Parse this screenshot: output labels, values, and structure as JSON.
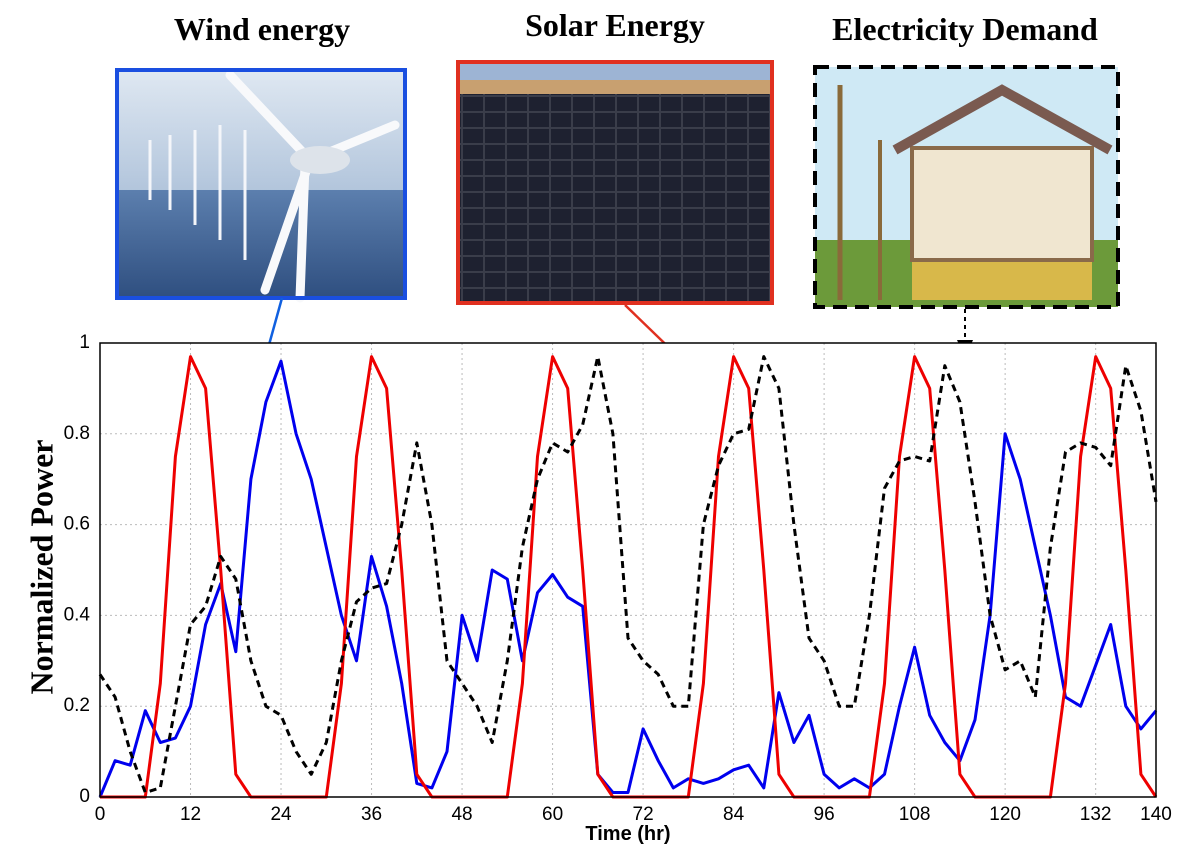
{
  "chart_data": {
    "type": "line",
    "x": [
      0,
      2,
      4,
      6,
      8,
      10,
      12,
      14,
      16,
      18,
      20,
      22,
      24,
      26,
      28,
      30,
      32,
      34,
      36,
      38,
      40,
      42,
      44,
      46,
      48,
      50,
      52,
      54,
      56,
      58,
      60,
      62,
      64,
      66,
      68,
      70,
      72,
      74,
      76,
      78,
      80,
      82,
      84,
      86,
      88,
      90,
      92,
      94,
      96,
      98,
      100,
      102,
      104,
      106,
      108,
      110,
      112,
      114,
      116,
      118,
      120,
      122,
      124,
      126,
      128,
      130,
      132,
      134,
      136,
      138,
      140
    ],
    "series": [
      {
        "name": "Wind energy",
        "color": "#0000ee",
        "dashed": false,
        "values": [
          0,
          0.08,
          0.07,
          0.19,
          0.12,
          0.13,
          0.2,
          0.38,
          0.47,
          0.32,
          0.7,
          0.87,
          0.96,
          0.8,
          0.7,
          0.55,
          0.4,
          0.3,
          0.53,
          0.42,
          0.25,
          0.03,
          0.02,
          0.1,
          0.4,
          0.3,
          0.5,
          0.48,
          0.3,
          0.45,
          0.49,
          0.44,
          0.42,
          0.05,
          0.01,
          0.01,
          0.15,
          0.08,
          0.02,
          0.04,
          0.03,
          0.04,
          0.06,
          0.07,
          0.02,
          0.23,
          0.12,
          0.18,
          0.05,
          0.02,
          0.04,
          0.02,
          0.05,
          0.2,
          0.33,
          0.18,
          0.12,
          0.08,
          0.17,
          0.4,
          0.8,
          0.7,
          0.55,
          0.4,
          0.22,
          0.2,
          0.29,
          0.38,
          0.2,
          0.15,
          0.19
        ]
      },
      {
        "name": "Solar Energy",
        "color": "#ee0000",
        "dashed": false,
        "values": [
          0,
          0,
          0,
          0,
          0.25,
          0.75,
          0.97,
          0.9,
          0.5,
          0.05,
          0,
          0,
          0,
          0,
          0,
          0,
          0.25,
          0.75,
          0.97,
          0.9,
          0.5,
          0.05,
          0,
          0,
          0,
          0,
          0,
          0,
          0.25,
          0.75,
          0.97,
          0.9,
          0.5,
          0.05,
          0,
          0,
          0,
          0,
          0,
          0,
          0.25,
          0.75,
          0.97,
          0.9,
          0.5,
          0.05,
          0,
          0,
          0,
          0,
          0,
          0,
          0.25,
          0.75,
          0.97,
          0.9,
          0.5,
          0.05,
          0,
          0,
          0,
          0,
          0,
          0,
          0.25,
          0.75,
          0.97,
          0.9,
          0.5,
          0.05,
          0
        ]
      },
      {
        "name": "Electricity Demand",
        "color": "#000000",
        "dashed": true,
        "values": [
          0.27,
          0.22,
          0.1,
          0.01,
          0.02,
          0.2,
          0.38,
          0.42,
          0.53,
          0.48,
          0.3,
          0.2,
          0.18,
          0.1,
          0.05,
          0.12,
          0.3,
          0.43,
          0.46,
          0.47,
          0.6,
          0.78,
          0.6,
          0.3,
          0.25,
          0.2,
          0.12,
          0.3,
          0.55,
          0.7,
          0.78,
          0.76,
          0.82,
          0.97,
          0.8,
          0.35,
          0.3,
          0.27,
          0.2,
          0.2,
          0.6,
          0.73,
          0.8,
          0.81,
          0.97,
          0.9,
          0.6,
          0.35,
          0.3,
          0.2,
          0.2,
          0.4,
          0.68,
          0.74,
          0.75,
          0.74,
          0.95,
          0.87,
          0.65,
          0.4,
          0.28,
          0.3,
          0.22,
          0.55,
          0.76,
          0.78,
          0.77,
          0.73,
          0.95,
          0.85,
          0.65
        ]
      }
    ],
    "x_label": "Time  (hr)",
    "y_label": "Normalized Power",
    "xlim": [
      0,
      140
    ],
    "xticks": [
      0,
      12,
      24,
      36,
      48,
      60,
      72,
      84,
      96,
      108,
      120,
      132,
      140
    ],
    "ylim": [
      0,
      1
    ],
    "yticks": [
      0,
      0.2,
      0.4,
      0.6,
      0.8,
      1
    ],
    "grid": true
  }
}
